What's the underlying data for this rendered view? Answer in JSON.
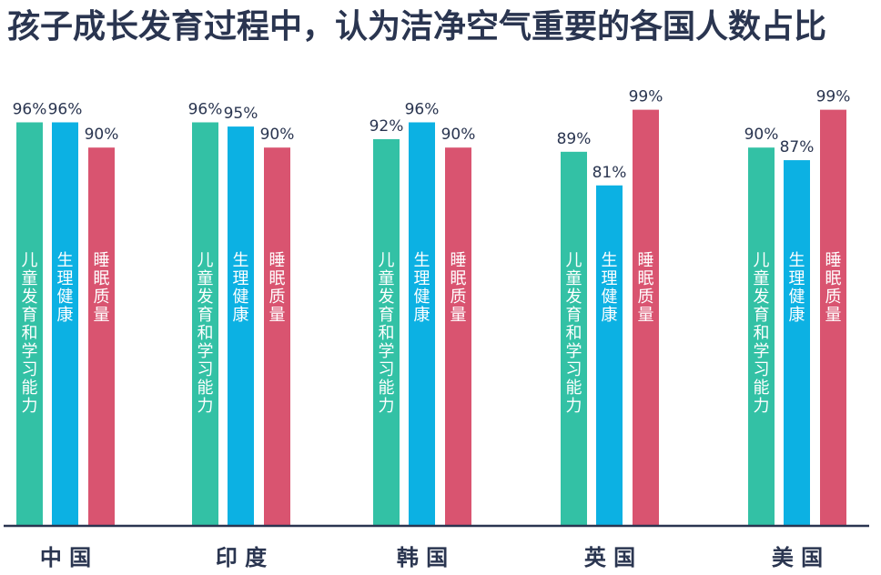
{
  "chart_data": {
    "type": "bar",
    "title": "孩子成长发育过程中，认为洁净空气重要的各国人数占比",
    "categories": [
      "中 国",
      "印 度",
      "韩 国",
      "英 国",
      "美 国"
    ],
    "series": [
      {
        "name": "儿童发育和学习能力",
        "color": "#33c1a5",
        "values": [
          96,
          96,
          92,
          89,
          90
        ],
        "value_labels": [
          "96%",
          "96%",
          "92%",
          "89%",
          "90%"
        ]
      },
      {
        "name": "生理健康",
        "color": "#0cb1e3",
        "values": [
          96,
          95,
          96,
          81,
          87
        ],
        "value_labels": [
          "96%",
          "95%",
          "96%",
          "81%",
          "87%"
        ]
      },
      {
        "name": "睡眠质量",
        "color": "#d95470",
        "values": [
          90,
          90,
          90,
          99,
          99
        ],
        "value_labels": [
          "90%",
          "90%",
          "90%",
          "99%",
          "99%"
        ]
      }
    ],
    "ylim": [
      0,
      100
    ],
    "xlabel": "",
    "ylabel": "",
    "grid": false,
    "baseline_color": "#2a3550",
    "label_color": "#2a3550"
  }
}
